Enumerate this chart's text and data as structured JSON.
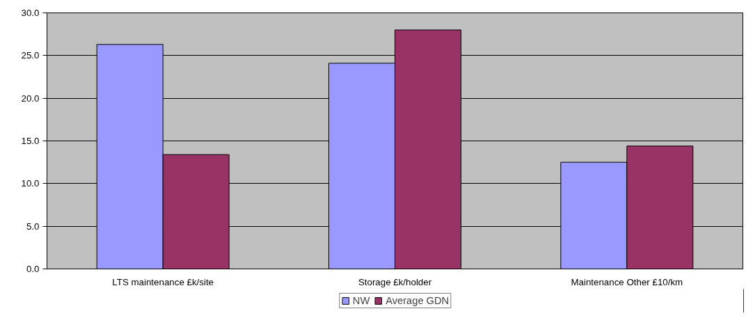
{
  "chart_data": {
    "type": "bar",
    "categories": [
      "LTS maintenance £k/site",
      "Storage £k/holder",
      "Maintenance Other £10/km"
    ],
    "series": [
      {
        "name": "NW",
        "color": "#9999ff",
        "values": [
          26.3,
          24.1,
          12.5
        ]
      },
      {
        "name": "Average GDN",
        "color": "#993366",
        "values": [
          13.4,
          28.0,
          14.4
        ]
      }
    ],
    "ylim": [
      0,
      30
    ],
    "yticks": [
      {
        "value": 0,
        "label": "0.0"
      },
      {
        "value": 5,
        "label": "5.0"
      },
      {
        "value": 10,
        "label": "10.0"
      },
      {
        "value": 15,
        "label": "15.0"
      },
      {
        "value": 20,
        "label": "20.0"
      },
      {
        "value": 25,
        "label": "25.0"
      },
      {
        "value": 30,
        "label": "30.0"
      }
    ],
    "grid": "y",
    "legend": "bottom"
  }
}
